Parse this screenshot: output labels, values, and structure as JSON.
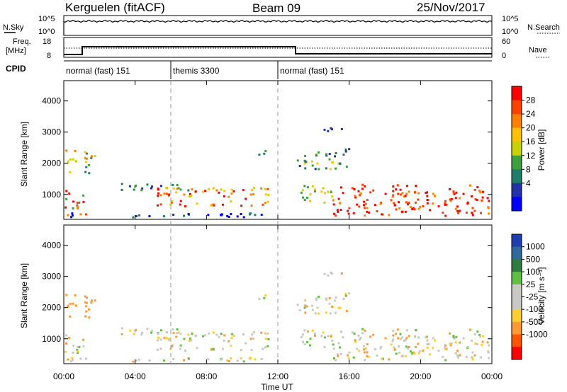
{
  "header": {
    "radar": "Kerguelen (fitACF)",
    "beam": "Beam 09",
    "date": "25/Nov/2017"
  },
  "noise_panel": {
    "left_label": "N.Sky",
    "left_ticks": [
      "10^5",
      "10^0"
    ],
    "right_ticks": [
      "10^5",
      "10^0"
    ],
    "right_label": "N.Search"
  },
  "freq_panel": {
    "left_label_1": "Freq.",
    "left_label_2": "[MHz]",
    "left_ticks": [
      "18",
      "8"
    ],
    "right_ticks": [
      "60",
      "0"
    ],
    "right_label": "Nave"
  },
  "cpid_panel": {
    "label": "CPID",
    "segments": [
      {
        "label": "normal (fast) 151",
        "start_hour": 0,
        "end_hour": 6
      },
      {
        "label": "themis 3300",
        "start_hour": 6,
        "end_hour": 12
      },
      {
        "label": "normal (fast) 151",
        "start_hour": 12,
        "end_hour": 24
      }
    ]
  },
  "chart_data": [
    {
      "type": "heatmap",
      "name": "power",
      "ylabel": "Slant Range [km]",
      "yticks": [
        1000,
        2000,
        3000,
        4000
      ],
      "ylim": [
        200,
        4650
      ],
      "xlim": [
        0,
        24
      ],
      "colorbar_label": "Power [dB]",
      "colorbar_ticks": [
        "28",
        "24",
        "20",
        "16",
        "12",
        "8",
        "4"
      ],
      "colorbar_colors": [
        "#ff0000",
        "#ff4000",
        "#ff8000",
        "#ffc000",
        "#c8d200",
        "#3ca03c",
        "#1f7d6b",
        "#2233aa",
        "#0000ff"
      ]
    },
    {
      "type": "heatmap",
      "name": "velocity",
      "ylabel": "Slant Range [km]",
      "yticks": [
        1000,
        2000,
        3000,
        4000
      ],
      "ylim": [
        200,
        4650
      ],
      "xlim": [
        0,
        24
      ],
      "xlabel": "Time UT",
      "xticks": [
        "00:00",
        "04:00",
        "08:00",
        "12:00",
        "16:00",
        "20:00",
        "00:00"
      ],
      "colorbar_label": "Velocity [m s⁻¹]",
      "colorbar_ticks": [
        "1000",
        "500",
        "100",
        "25",
        "-25",
        "-100",
        "-500",
        "-1000"
      ],
      "colorbar_colors": [
        "#1f3fb0",
        "#2e6a9e",
        "#2f7d3e",
        "#5fc040",
        "#c8c8c4",
        "#c8c8c4",
        "#ffcc33",
        "#ff9933",
        "#ff5500",
        "#ff0000"
      ]
    }
  ]
}
